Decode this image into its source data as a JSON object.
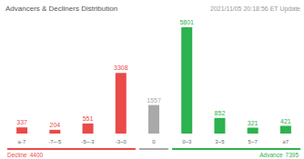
{
  "chart_data": {
    "type": "bar",
    "title": "Advancers & Decliners Distribution",
    "subtitle": "2021/11/05 20:18:56 ET Update",
    "categories": [
      "≤-7",
      "-7~-5",
      "-5~-3",
      "-3~0",
      "0",
      "0~3",
      "3~5",
      "5~7",
      "≥7"
    ],
    "values": [
      337,
      204,
      551,
      3308,
      1557,
      5801,
      852,
      321,
      421
    ],
    "colors": [
      "#ea4a48",
      "#ea4a48",
      "#ea4a48",
      "#ea4a48",
      "#a9a9a9",
      "#2cb24e",
      "#2cb24e",
      "#2cb24e",
      "#2cb24e"
    ],
    "ylim": [
      0,
      5801
    ],
    "data_labels": true,
    "tick_labels": "x",
    "summary": [
      {
        "name": "Decline",
        "value": 4400,
        "color": "#ea4a48"
      },
      {
        "name": "Advance",
        "value": 7395,
        "color": "#2cb24e"
      }
    ]
  }
}
